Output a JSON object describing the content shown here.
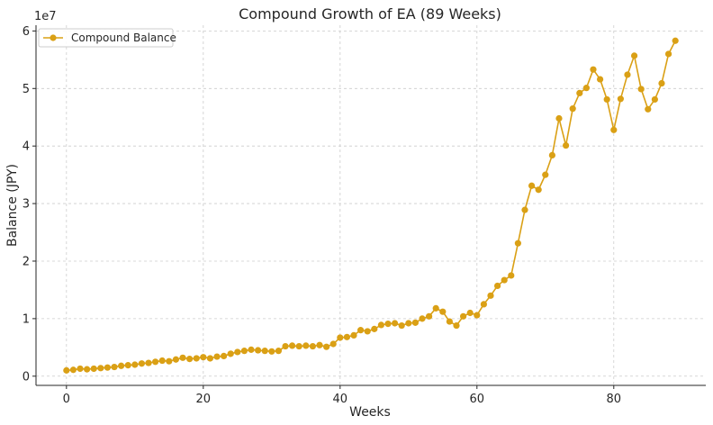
{
  "chart_data": {
    "type": "line",
    "title": "Compound Growth of EA (89 Weeks)",
    "xlabel": "Weeks",
    "ylabel": "Balance (JPY)",
    "y_offset_label": "1e7",
    "y_scale_factor": 10000000,
    "xlim": [
      -4.45,
      93.45
    ],
    "ylim": [
      -1600000,
      61000000
    ],
    "xticks": [
      0,
      20,
      40,
      60,
      80
    ],
    "xtick_labels": [
      "0",
      "20",
      "40",
      "60",
      "80"
    ],
    "yticks": [
      0,
      10000000,
      20000000,
      30000000,
      40000000,
      50000000,
      60000000
    ],
    "ytick_labels": [
      "0",
      "1",
      "2",
      "3",
      "4",
      "5",
      "6"
    ],
    "grid": true,
    "legend_position": "upper-left",
    "series": [
      {
        "name": "Compound Balance",
        "color": "#DAA015",
        "x": [
          0,
          1,
          2,
          3,
          4,
          5,
          6,
          7,
          8,
          9,
          10,
          11,
          12,
          13,
          14,
          15,
          16,
          17,
          18,
          19,
          20,
          21,
          22,
          23,
          24,
          25,
          26,
          27,
          28,
          29,
          30,
          31,
          32,
          33,
          34,
          35,
          36,
          37,
          38,
          39,
          40,
          41,
          42,
          43,
          44,
          45,
          46,
          47,
          48,
          49,
          50,
          51,
          52,
          53,
          54,
          55,
          56,
          57,
          58,
          59,
          60,
          61,
          62,
          63,
          64,
          65,
          66,
          67,
          68,
          69,
          70,
          71,
          72,
          73,
          74,
          75,
          76,
          77,
          78,
          79,
          80,
          81,
          82,
          83,
          84,
          85,
          86,
          87,
          88,
          89
        ],
        "values": [
          1000000,
          1100000,
          1300000,
          1200000,
          1300000,
          1400000,
          1500000,
          1600000,
          1800000,
          1900000,
          2000000,
          2200000,
          2300000,
          2500000,
          2700000,
          2600000,
          2900000,
          3200000,
          3000000,
          3100000,
          3300000,
          3100000,
          3400000,
          3500000,
          3900000,
          4200000,
          4400000,
          4600000,
          4500000,
          4400000,
          4300000,
          4400000,
          5200000,
          5300000,
          5200000,
          5300000,
          5200000,
          5400000,
          5100000,
          5600000,
          6700000,
          6800000,
          7100000,
          8000000,
          7800000,
          8200000,
          8900000,
          9100000,
          9200000,
          8800000,
          9200000,
          9300000,
          10000000,
          10400000,
          11800000,
          11200000,
          9500000,
          8800000,
          10400000,
          11000000,
          10600000,
          12500000,
          14000000,
          15700000,
          16700000,
          17500000,
          23100000,
          28900000,
          33100000,
          32400000,
          35000000,
          38400000,
          44800000,
          40100000,
          46500000,
          49200000,
          50100000,
          53300000,
          51600000,
          48100000,
          42800000,
          48200000,
          52400000,
          55700000,
          49900000,
          46400000,
          48100000,
          50900000,
          56000000,
          58300000
        ]
      }
    ]
  }
}
